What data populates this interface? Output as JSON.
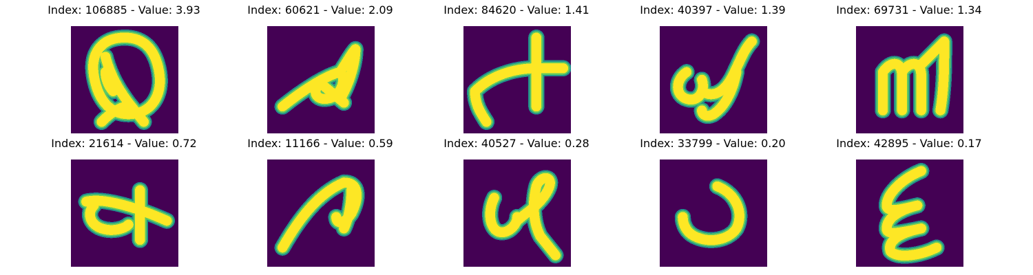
{
  "colors": {
    "background": "#440154",
    "edge": "#21918c",
    "stroke": "#fde725",
    "mid": "#5ec962"
  },
  "panels": [
    {
      "title": "Index: 106885 - Value: 3.93",
      "glyph": "Q"
    },
    {
      "title": "Index: 60621 - Value: 2.09",
      "glyph": "a"
    },
    {
      "title": "Index: 84620 - Value: 1.41",
      "glyph": "t"
    },
    {
      "title": "Index: 40397 - Value: 1.39",
      "glyph": "s"
    },
    {
      "title": "Index: 69731 - Value: 1.34",
      "glyph": "m"
    },
    {
      "title": "Index: 21614 - Value: 0.72",
      "glyph": "t"
    },
    {
      "title": "Index: 11166 - Value: 0.59",
      "glyph": "a"
    },
    {
      "title": "Index: 40527 - Value: 0.28",
      "glyph": "q"
    },
    {
      "title": "Index: 33799 - Value: 0.20",
      "glyph": "J"
    },
    {
      "title": "Index: 42895 - Value: 0.17",
      "glyph": "E"
    }
  ]
}
